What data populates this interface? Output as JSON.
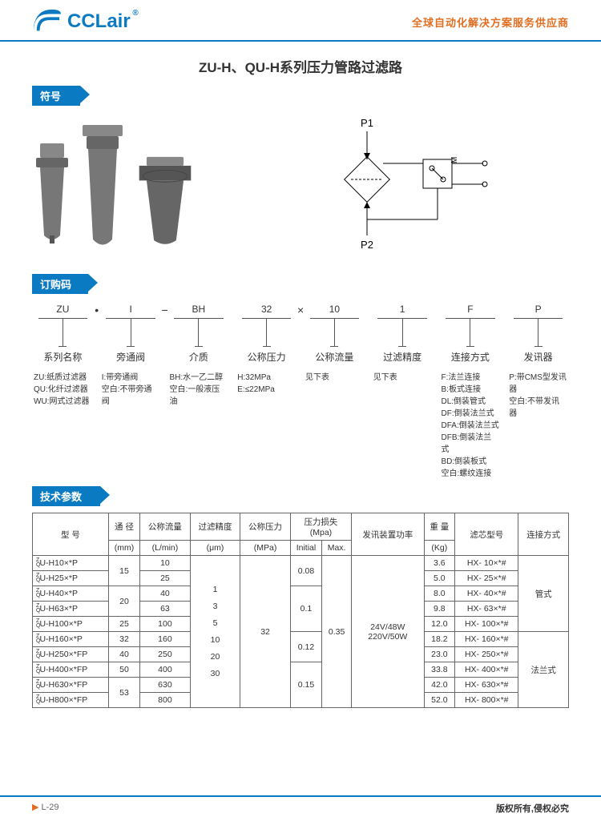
{
  "header": {
    "logo_text": "CCLair",
    "registered": "®",
    "tagline": "全球自动化解决方案服务供应商"
  },
  "title": "ZU-H、QU-H系列压力管路过滤路",
  "sections": {
    "symbol": "符号",
    "order": "订购码",
    "spec": "技术参数"
  },
  "diagram": {
    "p1": "P1",
    "p2": "P2",
    "m": "M"
  },
  "order_code": {
    "values": [
      "ZU",
      "I",
      "BH",
      "32",
      "10",
      "1",
      "F",
      "P"
    ],
    "seps": [
      "",
      "•",
      "−",
      "",
      "×",
      "",
      "",
      ""
    ],
    "labels": [
      "系列名称",
      "旁通阀",
      "介质",
      "公称压力",
      "公称流量",
      "过滤精度",
      "连接方式",
      "发讯器"
    ],
    "descs": [
      "ZU:纸质过滤器\nQU:化纤过滤器\nWU:网式过滤器",
      "I:带旁通阀\n空白:不带旁通阀",
      "BH:水一乙二醇\n空白:一般液压油",
      "H:32MPa\nE:≤22MPa",
      "见下表",
      "见下表",
      "F:法兰连接\nB:板式连接\nDL:倒装管式\nDF:倒装法兰式\nDFA:倒装法兰式\nDFB:倒装法兰式\nBD:倒装板式\n空白:螺纹连接",
      "P:带CMS型发讯器\n空白:不带发讯器"
    ]
  },
  "table": {
    "headers": {
      "model": "型 号",
      "diameter": "通 径",
      "diameter_unit": "(mm)",
      "flow": "公称流量",
      "flow_unit": "(L/min)",
      "precision": "过滤精度",
      "precision_unit": "(μm)",
      "pressure": "公称压力",
      "pressure_unit": "(MPa)",
      "loss": "压力损失",
      "loss_unit": "(Mpa)",
      "loss_init": "Initial",
      "loss_max": "Max.",
      "power": "发讯装置功率",
      "weight": "重 量",
      "weight_unit": "(Kg)",
      "cartridge": "滤芯型号",
      "connection": "连接方式"
    },
    "precision_values": "1\n3\n5\n10\n20\n30",
    "pressure_value": "32",
    "power_value": "24V/48W\n220V/50W",
    "loss_max_value": "0.35",
    "connections": [
      "管式",
      "法兰式"
    ],
    "rows": [
      {
        "model": "U-H10×*P",
        "dia": "15",
        "flow": "10",
        "loss_i": "0.08",
        "wt": "3.6",
        "cart": "HX- 10×*#"
      },
      {
        "model": "U-H25×*P",
        "dia": "",
        "flow": "25",
        "loss_i": "",
        "wt": "5.0",
        "cart": "HX- 25×*#"
      },
      {
        "model": "U-H40×*P",
        "dia": "20",
        "flow": "40",
        "loss_i": "0.1",
        "wt": "8.0",
        "cart": "HX- 40×*#"
      },
      {
        "model": "U-H63×*P",
        "dia": "",
        "flow": "63",
        "loss_i": "",
        "wt": "9.8",
        "cart": "HX- 63×*#"
      },
      {
        "model": "U-H100×*P",
        "dia": "25",
        "flow": "100",
        "loss_i": "",
        "wt": "12.0",
        "cart": "HX- 100×*#"
      },
      {
        "model": "U-H160×*P",
        "dia": "32",
        "flow": "160",
        "loss_i": "0.12",
        "wt": "18.2",
        "cart": "HX- 160×*#"
      },
      {
        "model": "U-H250×*FP",
        "dia": "40",
        "flow": "250",
        "loss_i": "",
        "wt": "23.0",
        "cart": "HX- 250×*#"
      },
      {
        "model": "U-H400×*FP",
        "dia": "50",
        "flow": "400",
        "loss_i": "0.15",
        "wt": "33.8",
        "cart": "HX- 400×*#"
      },
      {
        "model": "U-H630×*FP",
        "dia": "53",
        "flow": "630",
        "loss_i": "",
        "wt": "42.0",
        "cart": "HX- 630×*#"
      },
      {
        "model": "U-H800×*FP",
        "dia": "",
        "flow": "800",
        "loss_i": "",
        "wt": "52.0",
        "cart": "HX- 800×*#"
      }
    ]
  },
  "footer": {
    "page": "L-29",
    "copyright": "版权所有,侵权必究"
  },
  "colors": {
    "primary": "#0a7bc2",
    "accent": "#e26e22",
    "border": "#666666"
  }
}
